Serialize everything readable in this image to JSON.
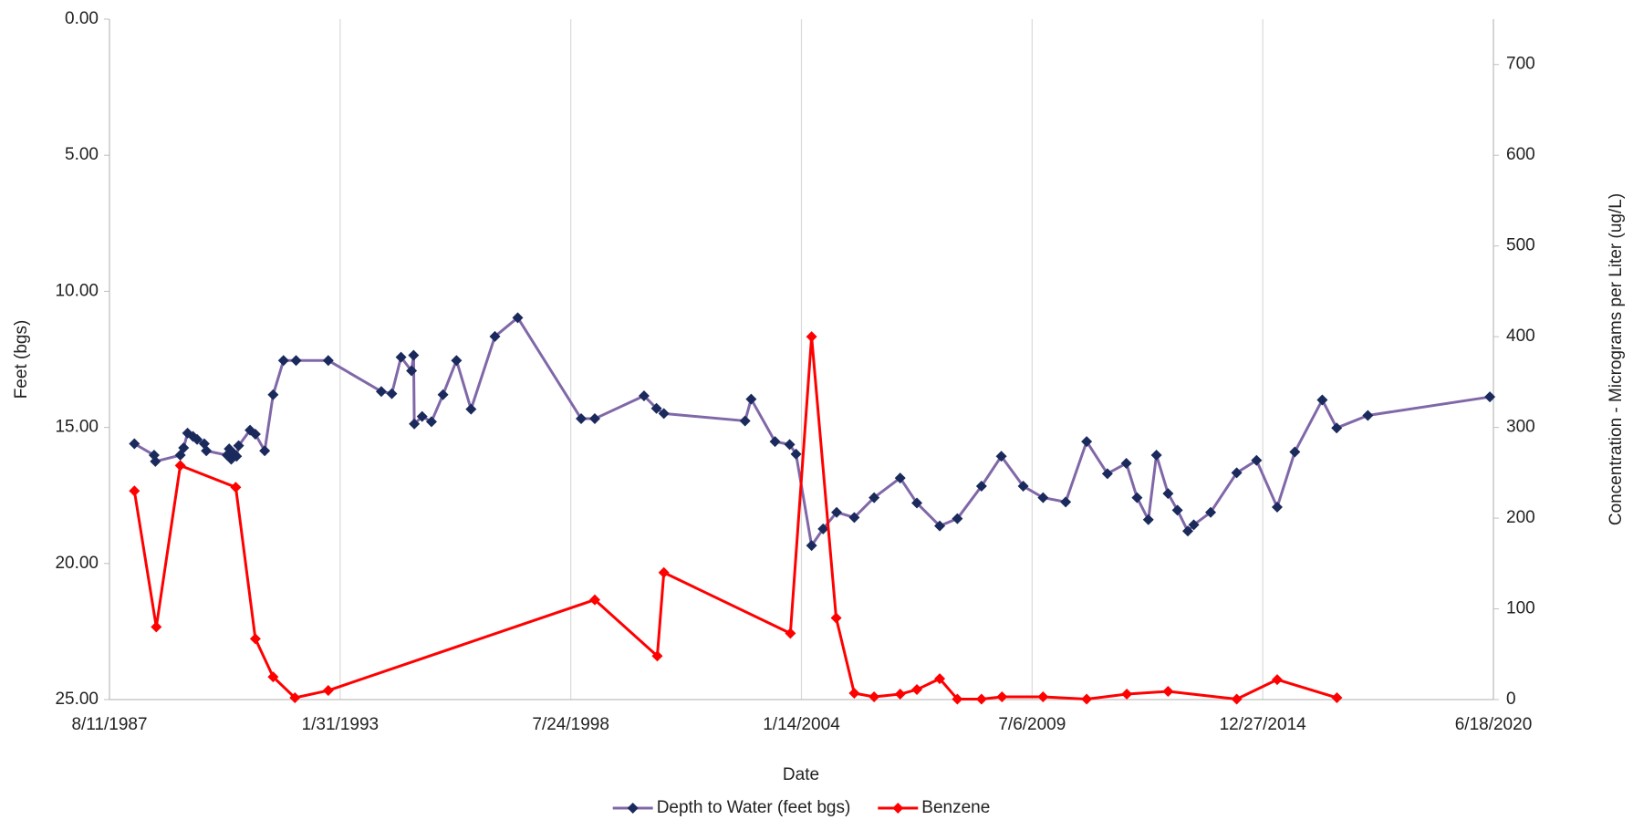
{
  "chart_data": {
    "type": "line",
    "x_label": "Date",
    "y_label": "Feet (bgs)",
    "y2_label": "Concentration - Micrograms per Liter (ug/L)",
    "xlim": [
      "1987-08-11",
      "2020-06-18"
    ],
    "xticks": [
      {
        "value": "1987-08-11",
        "label": "8/11/1987"
      },
      {
        "value": "1993-01-31",
        "label": "1/31/1993"
      },
      {
        "value": "1998-07-24",
        "label": "7/24/1998"
      },
      {
        "value": "2004-01-14",
        "label": "1/14/2004"
      },
      {
        "value": "2009-07-06",
        "label": "7/6/2009"
      },
      {
        "value": "2014-12-27",
        "label": "12/27/2014"
      },
      {
        "value": "2020-06-18",
        "label": "6/18/2020"
      }
    ],
    "ylim": [
      0,
      25
    ],
    "y_inverted": true,
    "yticks": [
      {
        "value": 0,
        "label": "0.00"
      },
      {
        "value": 5,
        "label": "5.00"
      },
      {
        "value": 10,
        "label": "10.00"
      },
      {
        "value": 15,
        "label": "15.00"
      },
      {
        "value": 20,
        "label": "20.00"
      },
      {
        "value": 25,
        "label": "25.00"
      }
    ],
    "y2lim": [
      0,
      750
    ],
    "y2ticks": [
      0,
      100,
      200,
      300,
      400,
      500,
      600,
      700
    ],
    "grid": "x",
    "legend": "bottom",
    "series": [
      {
        "name": "Depth to Water (feet bgs)",
        "color": "#8068a8",
        "marker_color": "#1b2a5c",
        "axis": "y",
        "x": [
          "1988-03-14",
          "1988-09-01",
          "1988-09-12",
          "1989-04-16",
          "1989-05-15",
          "1989-06-18",
          "1989-08-04",
          "1989-09-09",
          "1989-11-10",
          "1989-11-28",
          "1990-05-27",
          "1990-06-14",
          "1990-07-02",
          "1990-07-29",
          "1990-08-17",
          "1990-09-04",
          "1990-12-12",
          "1991-01-27",
          "1991-04-18",
          "1991-06-30",
          "1991-09-28",
          "1992-01-15",
          "1992-10-20",
          "1994-01-23",
          "1994-04-24",
          "1994-07-13",
          "1994-10-12",
          "1994-10-30",
          "1994-11-05",
          "1995-01-12",
          "1995-04-03",
          "1995-07-12",
          "1995-11-06",
          "1996-03-11",
          "1996-10-04",
          "1997-04-20",
          "1998-10-22",
          "1999-02-17",
          "2000-04-19",
          "2000-08-05",
          "2000-10-08",
          "2002-09-12",
          "2002-11-04",
          "2003-05-30",
          "2003-10-04",
          "2003-11-28",
          "2004-04-11",
          "2004-07-20",
          "2004-11-14",
          "2005-04-16",
          "2005-10-05",
          "2006-05-19",
          "2006-10-11",
          "2007-04-27",
          "2007-09-27",
          "2008-04-23",
          "2008-10-12",
          "2009-04-20",
          "2009-10-09",
          "2010-04-23",
          "2010-10-22",
          "2011-04-20",
          "2011-10-01",
          "2012-01-02",
          "2012-04-09",
          "2012-06-18",
          "2012-09-27",
          "2012-12-17",
          "2013-03-17",
          "2013-05-08",
          "2013-10-01",
          "2014-05-15",
          "2014-11-03",
          "2015-05-01",
          "2015-10-01",
          "2016-05-26",
          "2016-09-28",
          "2017-06-25",
          "2020-05-18"
        ],
        "values": [
          15.6,
          16.02,
          16.25,
          16.02,
          15.75,
          15.21,
          15.33,
          15.44,
          15.6,
          15.86,
          16.02,
          15.79,
          16.17,
          15.98,
          16.06,
          15.67,
          15.1,
          15.25,
          15.86,
          13.8,
          12.54,
          12.54,
          12.54,
          13.68,
          13.76,
          12.42,
          12.92,
          12.35,
          14.87,
          14.6,
          14.79,
          13.8,
          12.54,
          14.33,
          11.66,
          10.97,
          14.68,
          14.68,
          13.84,
          14.3,
          14.49,
          14.76,
          13.96,
          15.52,
          15.63,
          15.98,
          19.34,
          18.73,
          18.12,
          18.31,
          17.58,
          16.86,
          17.78,
          18.62,
          18.35,
          17.16,
          16.06,
          17.16,
          17.58,
          17.74,
          15.52,
          16.7,
          16.32,
          17.58,
          18.39,
          16.02,
          17.43,
          18.04,
          18.81,
          18.58,
          18.12,
          16.67,
          16.21,
          17.93,
          15.9,
          13.99,
          15.02,
          14.56,
          13.88
        ]
      },
      {
        "name": "Benzene",
        "color": "#ff0000",
        "marker_color": "#ff0000",
        "axis": "y2",
        "x": [
          "1988-03-14",
          "1988-09-20",
          "1989-04-16",
          "1990-08-10",
          "1991-01-27",
          "1991-06-30",
          "1992-01-05",
          "1992-10-20",
          "1999-02-17",
          "2000-08-12",
          "2000-10-08",
          "2003-10-10",
          "2004-04-11",
          "2004-11-10",
          "2005-04-16",
          "2005-10-05",
          "2006-05-19",
          "2006-10-11",
          "2007-04-27",
          "2007-09-27",
          "2008-04-23",
          "2008-10-18",
          "2009-10-09",
          "2010-10-22",
          "2011-10-05",
          "2012-09-27",
          "2014-05-15",
          "2015-05-01",
          "2016-09-30"
        ],
        "values": [
          230,
          80,
          258,
          234,
          67,
          25,
          2,
          10,
          110,
          48,
          140,
          73,
          400,
          90,
          7,
          3,
          6,
          11,
          23,
          0.5,
          0.5,
          3,
          3,
          0.5,
          6,
          9,
          0.5,
          22,
          2
        ]
      }
    ]
  }
}
